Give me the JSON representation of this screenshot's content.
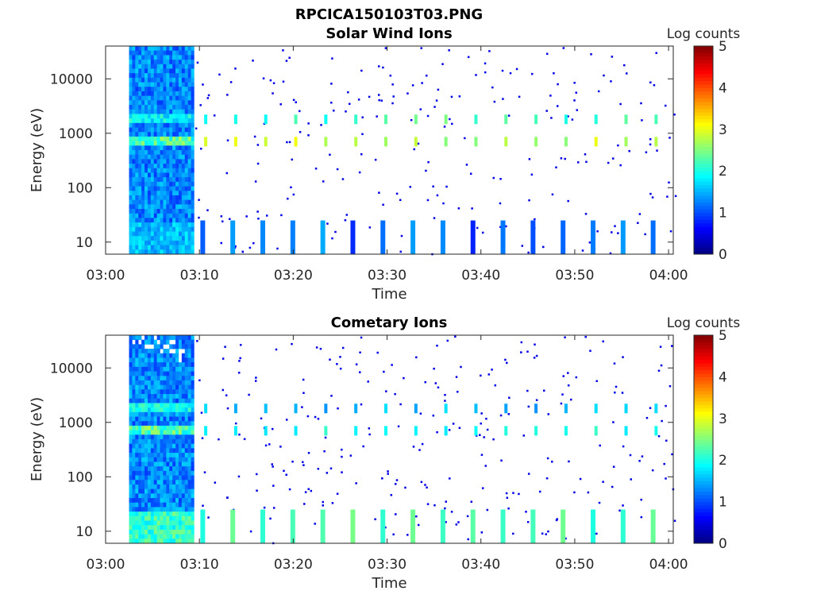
{
  "figure": {
    "title": "RPCICA150103T03.PNG"
  },
  "colorbar": {
    "label": "Log counts",
    "range": [
      0,
      5
    ],
    "ticks": [
      "0",
      "1",
      "2",
      "3",
      "4",
      "5"
    ],
    "colormap": "jet"
  },
  "chart_data": [
    {
      "type": "heatmap",
      "title": "Solar Wind Ions",
      "xlabel": "Time",
      "ylabel": "Energy (eV)",
      "x_ticks": [
        "03:00",
        "03:10",
        "03:20",
        "03:30",
        "03:40",
        "03:50",
        "04:00"
      ],
      "x_range_minutes": [
        0,
        60.5
      ],
      "y_scale": "log",
      "y_range": [
        6,
        40000
      ],
      "y_ticks": [
        10,
        100,
        1000,
        10000
      ],
      "y_tick_labels": [
        "10",
        "100",
        "1000",
        "10000"
      ],
      "z_label": "Log counts",
      "z_range": [
        0,
        5
      ],
      "features": {
        "high_count_interval_minutes": [
          2.5,
          9.3
        ],
        "peak_bands_eV": [
          700,
          1800
        ],
        "low_energy_band_eV": [
          6,
          25
        ],
        "sweep_period_minutes": 3.2
      }
    },
    {
      "type": "heatmap",
      "title": "Cometary Ions",
      "xlabel": "Time",
      "ylabel": "Energy (eV)",
      "x_ticks": [
        "03:00",
        "03:10",
        "03:20",
        "03:30",
        "03:40",
        "03:50",
        "04:00"
      ],
      "x_range_minutes": [
        0,
        60.5
      ],
      "y_scale": "log",
      "y_range": [
        6,
        40000
      ],
      "y_ticks": [
        10,
        100,
        1000,
        10000
      ],
      "y_tick_labels": [
        "10",
        "100",
        "1000",
        "10000"
      ],
      "z_label": "Log counts",
      "z_range": [
        0,
        5
      ],
      "features": {
        "high_count_interval_minutes": [
          2.5,
          9.3
        ],
        "peak_bands_eV": [
          700,
          1800
        ],
        "low_energy_band_eV": [
          6,
          25
        ],
        "sweep_period_minutes": 3.2
      }
    }
  ]
}
